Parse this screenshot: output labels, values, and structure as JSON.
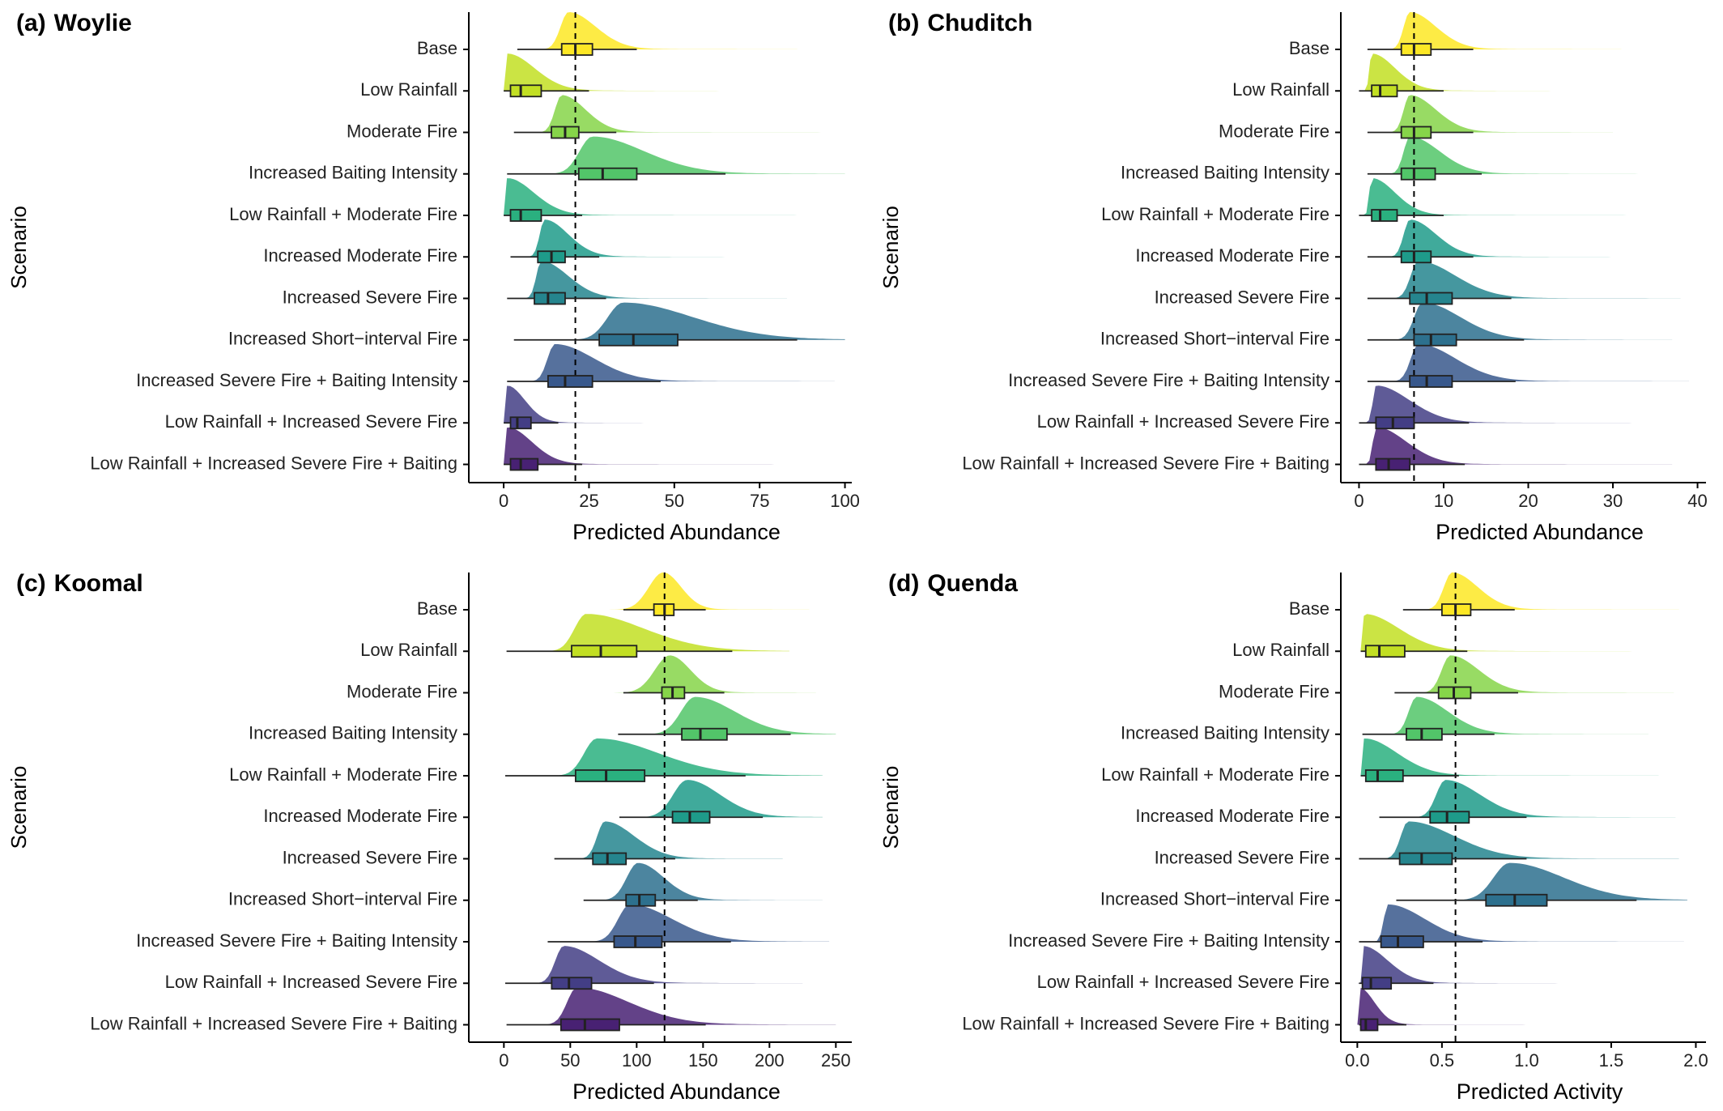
{
  "figure": {
    "common_ylabel": "Scenario",
    "colors": [
      "#FDE725",
      "#C2DF23",
      "#86D549",
      "#52C569",
      "#2AB07F",
      "#1E9B8A",
      "#25858E",
      "#2D708E",
      "#38588C",
      "#433E85",
      "#482173"
    ]
  },
  "chart_data": [
    {
      "type": "raincloud",
      "panel_letter": "(a)",
      "panel_species": "Woylie",
      "xlabel": "Predicted Abundance",
      "ylabel": "Scenario",
      "xlim": [
        -5,
        102
      ],
      "xticks": [
        0,
        25,
        50,
        75,
        100
      ],
      "xtick_labels": [
        "0",
        "25",
        "50",
        "75",
        "100"
      ],
      "reference_line": 21,
      "categories": [
        "Base",
        "Low Rainfall",
        "Moderate Fire",
        "Increased Baiting Intensity",
        "Low Rainfall + Moderate Fire",
        "Increased Moderate Fire",
        "Increased Severe Fire",
        "Increased Short−interval Fire",
        "Increased Severe Fire + Baiting Intensity",
        "Low Rainfall + Increased Severe Fire",
        "Low Rainfall + Increased Severe Fire + Baiting"
      ],
      "series": [
        {
          "min": 4,
          "q1": 17,
          "median": 21,
          "q3": 26,
          "max": 39,
          "mode": 19,
          "dmin": 4,
          "dmax": 86
        },
        {
          "min": 0,
          "q1": 2,
          "median": 5,
          "q3": 11,
          "max": 25,
          "mode": 1,
          "dmin": 0,
          "dmax": 98
        },
        {
          "min": 3,
          "q1": 14,
          "median": 18,
          "q3": 22,
          "max": 33,
          "mode": 17,
          "dmin": 3,
          "dmax": 95
        },
        {
          "min": 1,
          "q1": 22,
          "median": 29,
          "q3": 39,
          "max": 65,
          "mode": 26,
          "dmin": 1,
          "dmax": 100
        },
        {
          "min": 0,
          "q1": 2,
          "median": 5,
          "q3": 11,
          "max": 23,
          "mode": 1,
          "dmin": 0,
          "dmax": 87
        },
        {
          "min": 2,
          "q1": 10,
          "median": 14,
          "q3": 18,
          "max": 28,
          "mode": 12,
          "dmin": 2,
          "dmax": 84
        },
        {
          "min": 1,
          "q1": 9,
          "median": 13,
          "q3": 18,
          "max": 30,
          "mode": 11,
          "dmin": 1,
          "dmax": 83
        },
        {
          "min": 3,
          "q1": 28,
          "median": 38,
          "q3": 51,
          "max": 86,
          "mode": 35,
          "dmin": 3,
          "dmax": 100
        },
        {
          "min": 1,
          "q1": 13,
          "median": 18,
          "q3": 26,
          "max": 46,
          "mode": 15,
          "dmin": 1,
          "dmax": 97
        },
        {
          "min": 0,
          "q1": 2,
          "median": 4,
          "q3": 8,
          "max": 16,
          "mode": 1,
          "dmin": 0,
          "dmax": 86
        },
        {
          "min": 0,
          "q1": 2,
          "median": 5,
          "q3": 10,
          "max": 23,
          "mode": 1,
          "dmin": 0,
          "dmax": 84
        }
      ]
    },
    {
      "type": "raincloud",
      "panel_letter": "(b)",
      "panel_species": "Chuditch",
      "xlabel": "Predicted Abundance",
      "ylabel": "Scenario",
      "xlim": [
        -1,
        41
      ],
      "xticks": [
        0,
        10,
        20,
        30,
        40
      ],
      "xtick_labels": [
        "0",
        "10",
        "20",
        "30",
        "40"
      ],
      "reference_line": 6.5,
      "categories": [
        "Base",
        "Low Rainfall",
        "Moderate Fire",
        "Increased Baiting Intensity",
        "Low Rainfall + Moderate Fire",
        "Increased Moderate Fire",
        "Increased Severe Fire",
        "Increased Short−interval Fire",
        "Increased Severe Fire + Baiting Intensity",
        "Low Rainfall + Increased Severe Fire",
        "Low Rainfall + Increased Severe Fire + Baiting"
      ],
      "series": [
        {
          "min": 1,
          "q1": 5,
          "median": 6.5,
          "q3": 8.5,
          "max": 13.5,
          "mode": 6,
          "dmin": 1,
          "dmax": 31
        },
        {
          "min": 0,
          "q1": 1.5,
          "median": 2.5,
          "q3": 4.5,
          "max": 10,
          "mode": 1.5,
          "dmin": 0,
          "dmax": 30
        },
        {
          "min": 1,
          "q1": 5,
          "median": 6.5,
          "q3": 8.5,
          "max": 13.5,
          "mode": 6,
          "dmin": 1,
          "dmax": 30
        },
        {
          "min": 1,
          "q1": 5,
          "median": 6.5,
          "q3": 9,
          "max": 14.5,
          "mode": 6,
          "dmin": 1,
          "dmax": 37
        },
        {
          "min": 0,
          "q1": 1.5,
          "median": 2.5,
          "q3": 4.5,
          "max": 10,
          "mode": 1.5,
          "dmin": 0,
          "dmax": 39
        },
        {
          "min": 1,
          "q1": 5,
          "median": 6.5,
          "q3": 8.5,
          "max": 13.5,
          "mode": 6,
          "dmin": 1,
          "dmax": 37
        },
        {
          "min": 1,
          "q1": 6,
          "median": 8,
          "q3": 11,
          "max": 18,
          "mode": 7,
          "dmin": 1,
          "dmax": 38
        },
        {
          "min": 1,
          "q1": 6.5,
          "median": 8.5,
          "q3": 11.5,
          "max": 19.5,
          "mode": 7.5,
          "dmin": 1,
          "dmax": 37
        },
        {
          "min": 1,
          "q1": 6,
          "median": 8,
          "q3": 11,
          "max": 18.5,
          "mode": 7,
          "dmin": 1,
          "dmax": 39
        },
        {
          "min": 0,
          "q1": 2,
          "median": 4,
          "q3": 6.5,
          "max": 13,
          "mode": 2,
          "dmin": 0,
          "dmax": 35
        },
        {
          "min": 0,
          "q1": 2,
          "median": 3.5,
          "q3": 6,
          "max": 12.5,
          "mode": 2,
          "dmin": 0,
          "dmax": 37
        }
      ]
    },
    {
      "type": "raincloud",
      "panel_letter": "(c)",
      "panel_species": "Koomal",
      "xlabel": "Predicted Abundance",
      "ylabel": "Scenario",
      "xlim": [
        -13,
        262
      ],
      "xticks": [
        0,
        50,
        100,
        150,
        200,
        250
      ],
      "xtick_labels": [
        "0",
        "50",
        "100",
        "150",
        "200",
        "250"
      ],
      "reference_line": 121,
      "categories": [
        "Base",
        "Low Rainfall",
        "Moderate Fire",
        "Increased Baiting Intensity",
        "Low Rainfall + Moderate Fire",
        "Increased Moderate Fire",
        "Increased Severe Fire",
        "Increased Short−interval Fire",
        "Increased Severe Fire + Baiting Intensity",
        "Low Rainfall + Increased Severe Fire",
        "Low Rainfall + Increased Severe Fire + Baiting"
      ],
      "series": [
        {
          "min": 90,
          "q1": 113,
          "median": 121,
          "q3": 128,
          "max": 152,
          "mode": 120,
          "dmin": 30,
          "dmax": 230
        },
        {
          "min": 2,
          "q1": 51,
          "median": 73,
          "q3": 100,
          "max": 172,
          "mode": 62,
          "dmin": 2,
          "dmax": 215
        },
        {
          "min": 90,
          "q1": 119,
          "median": 127,
          "q3": 136,
          "max": 166,
          "mode": 125,
          "dmin": 30,
          "dmax": 235
        },
        {
          "min": 86,
          "q1": 134,
          "median": 148,
          "q3": 168,
          "max": 216,
          "mode": 144,
          "dmin": 55,
          "dmax": 250
        },
        {
          "min": 1,
          "q1": 54,
          "median": 77,
          "q3": 106,
          "max": 182,
          "mode": 70,
          "dmin": 1,
          "dmax": 240
        },
        {
          "min": 87,
          "q1": 127,
          "median": 140,
          "q3": 155,
          "max": 195,
          "mode": 138,
          "dmin": 50,
          "dmax": 240
        },
        {
          "min": 38,
          "q1": 67,
          "median": 78,
          "q3": 92,
          "max": 129,
          "mode": 76,
          "dmin": 28,
          "dmax": 210
        },
        {
          "min": 60,
          "q1": 92,
          "median": 102,
          "q3": 114,
          "max": 146,
          "mode": 101,
          "dmin": 30,
          "dmax": 240
        },
        {
          "min": 33,
          "q1": 83,
          "median": 99,
          "q3": 119,
          "max": 171,
          "mode": 95,
          "dmin": 28,
          "dmax": 245
        },
        {
          "min": 1,
          "q1": 36,
          "median": 49,
          "q3": 66,
          "max": 113,
          "mode": 45,
          "dmin": 1,
          "dmax": 225
        },
        {
          "min": 2,
          "q1": 43,
          "median": 61,
          "q3": 87,
          "max": 152,
          "mode": 55,
          "dmin": 2,
          "dmax": 250
        }
      ]
    },
    {
      "type": "raincloud",
      "panel_letter": "(d)",
      "panel_species": "Quenda",
      "xlabel": "Predicted Activity",
      "ylabel": "Scenario",
      "xlim": [
        -0.04,
        2.06
      ],
      "xticks": [
        0,
        0.5,
        1,
        1.5,
        2
      ],
      "xtick_labels": [
        "0.0",
        "0.5",
        "1.0",
        "1.5",
        "2.0"
      ],
      "reference_line": 0.58,
      "categories": [
        "Base",
        "Low Rainfall",
        "Moderate Fire",
        "Increased Baiting Intensity",
        "Low Rainfall + Moderate Fire",
        "Increased Moderate Fire",
        "Increased Severe Fire",
        "Increased Short−interval Fire",
        "Increased Severe Fire + Baiting Intensity",
        "Low Rainfall + Increased Severe Fire",
        "Low Rainfall + Increased Severe Fire + Baiting"
      ],
      "series": [
        {
          "min": 0.27,
          "q1": 0.5,
          "median": 0.58,
          "q3": 0.67,
          "max": 0.93,
          "mode": 0.56,
          "dmin": 0.15,
          "dmax": 1.9
        },
        {
          "min": 0.02,
          "q1": 0.05,
          "median": 0.13,
          "q3": 0.28,
          "max": 0.65,
          "mode": 0.04,
          "dmin": 0.0,
          "dmax": 1.72
        },
        {
          "min": 0.22,
          "q1": 0.48,
          "median": 0.57,
          "q3": 0.67,
          "max": 0.95,
          "mode": 0.55,
          "dmin": 0.12,
          "dmax": 1.87
        },
        {
          "min": 0.03,
          "q1": 0.29,
          "median": 0.38,
          "q3": 0.5,
          "max": 0.81,
          "mode": 0.35,
          "dmin": 0.03,
          "dmax": 1.72
        },
        {
          "min": 0.02,
          "q1": 0.05,
          "median": 0.12,
          "q3": 0.27,
          "max": 0.6,
          "mode": 0.04,
          "dmin": 0.0,
          "dmax": 1.78
        },
        {
          "min": 0.13,
          "q1": 0.43,
          "median": 0.53,
          "q3": 0.66,
          "max": 1.0,
          "mode": 0.52,
          "dmin": 0.08,
          "dmax": 1.88
        },
        {
          "min": 0.01,
          "q1": 0.25,
          "median": 0.38,
          "q3": 0.56,
          "max": 1.0,
          "mode": 0.3,
          "dmin": 0.01,
          "dmax": 1.9
        },
        {
          "min": 0.23,
          "q1": 0.76,
          "median": 0.93,
          "q3": 1.12,
          "max": 1.65,
          "mode": 0.9,
          "dmin": 0.2,
          "dmax": 1.95
        },
        {
          "min": 0.01,
          "q1": 0.14,
          "median": 0.24,
          "q3": 0.39,
          "max": 0.74,
          "mode": 0.18,
          "dmin": 0.01,
          "dmax": 1.93
        },
        {
          "min": 0.01,
          "q1": 0.03,
          "median": 0.08,
          "q3": 0.2,
          "max": 0.45,
          "mode": 0.03,
          "dmin": 0.0,
          "dmax": 1.75
        },
        {
          "min": 0.01,
          "q1": 0.02,
          "median": 0.05,
          "q3": 0.12,
          "max": 0.29,
          "mode": 0.01,
          "dmin": 0.0,
          "dmax": 1.83
        }
      ]
    }
  ]
}
